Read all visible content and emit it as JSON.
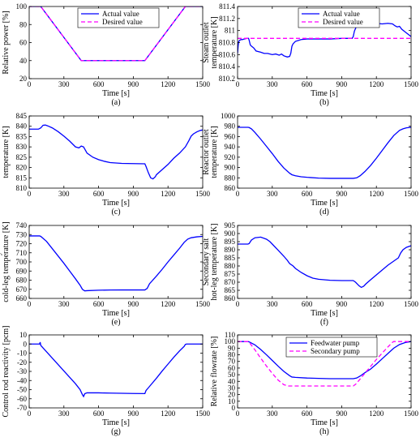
{
  "colors": {
    "blue": "#0000ff",
    "magenta": "#ff00ff",
    "axis": "#000000"
  },
  "chart_data": [
    {
      "id": "a",
      "type": "line",
      "caption": "(a)",
      "xlabel": "Time [s]",
      "ylabel": "Relative power [%]",
      "xlim": [
        0,
        1500
      ],
      "ylim": [
        20,
        100
      ],
      "xticks": [
        0,
        300,
        600,
        900,
        1200,
        1500
      ],
      "yticks": [
        20,
        40,
        60,
        80,
        100
      ],
      "grid": false,
      "legend": "top-center",
      "series": [
        {
          "name": "Actual value",
          "style": "solid",
          "color": "#0000ff",
          "x": [
            0,
            100,
            450,
            1000,
            1350,
            1500
          ],
          "y": [
            100,
            100,
            40,
            40,
            100,
            100
          ]
        },
        {
          "name": "Desired value",
          "style": "dashed",
          "color": "#ff00ff",
          "x": [
            0,
            100,
            450,
            1000,
            1350,
            1500
          ],
          "y": [
            100,
            100,
            40,
            40,
            100,
            100
          ]
        }
      ]
    },
    {
      "id": "b",
      "type": "line",
      "caption": "(b)",
      "xlabel": "Time [s]",
      "ylabel": "Steam outlet temperature [K]",
      "xlim": [
        0,
        1500
      ],
      "ylim": [
        810.2,
        811.4
      ],
      "xticks": [
        0,
        300,
        600,
        900,
        1200,
        1500
      ],
      "yticks": [
        810.2,
        810.4,
        810.6,
        810.8,
        811,
        811.2,
        811.4
      ],
      "grid": false,
      "legend": "top-center",
      "series": [
        {
          "name": "Actual value",
          "style": "solid",
          "color": "#0000ff",
          "x": [
            0,
            5,
            10,
            20,
            30,
            40,
            60,
            80,
            95,
            100,
            110,
            120,
            140,
            160,
            200,
            230,
            260,
            300,
            330,
            360,
            380,
            400,
            430,
            450,
            460,
            470,
            480,
            500,
            550,
            600,
            700,
            800,
            900,
            990,
            1000,
            1010,
            1030,
            1050,
            1070,
            1100,
            1150,
            1200,
            1250,
            1300,
            1340,
            1360,
            1380,
            1400,
            1420,
            1440,
            1460,
            1480,
            1500
          ],
          "y": [
            810.62,
            810.74,
            810.82,
            810.84,
            810.85,
            810.85,
            810.86,
            810.87,
            810.87,
            810.84,
            810.76,
            810.74,
            810.71,
            810.66,
            810.64,
            810.62,
            810.62,
            810.6,
            810.61,
            810.59,
            810.61,
            810.58,
            810.56,
            810.57,
            810.62,
            810.74,
            810.78,
            810.82,
            810.85,
            810.86,
            810.86,
            810.86,
            810.87,
            810.87,
            810.9,
            810.99,
            811.08,
            811.1,
            811.06,
            811.08,
            811.1,
            811.12,
            811.11,
            811.12,
            811.11,
            811.08,
            811.06,
            811.07,
            811.02,
            810.99,
            810.96,
            810.93,
            810.9
          ]
        },
        {
          "name": "Desired value",
          "style": "dashed",
          "color": "#ff00ff",
          "x": [
            0,
            1500
          ],
          "y": [
            810.87,
            810.87
          ]
        }
      ]
    },
    {
      "id": "c",
      "type": "line",
      "caption": "(c)",
      "xlabel": "Time [s]",
      "ylabel": "Reactor inlet temperature [K]",
      "xlim": [
        0,
        1500
      ],
      "ylim": [
        810,
        845
      ],
      "xticks": [
        0,
        300,
        600,
        900,
        1200,
        1500
      ],
      "yticks": [
        810,
        815,
        820,
        825,
        830,
        835,
        840,
        845
      ],
      "grid": false,
      "series": [
        {
          "name": "",
          "style": "solid",
          "color": "#0000ff",
          "x": [
            0,
            80,
            100,
            120,
            140,
            160,
            200,
            250,
            300,
            350,
            400,
            430,
            450,
            470,
            480,
            500,
            550,
            600,
            650,
            700,
            800,
            900,
            1000,
            1010,
            1030,
            1050,
            1070,
            1090,
            1100,
            1130,
            1200,
            1250,
            1300,
            1350,
            1380,
            1400,
            1420,
            1450,
            1480,
            1500
          ],
          "y": [
            838.6,
            838.6,
            839.2,
            840.5,
            840.6,
            840.2,
            839.2,
            837.4,
            835.2,
            832.8,
            830,
            829.5,
            830.4,
            830,
            829,
            827,
            825,
            823.8,
            823,
            822.4,
            822,
            821.9,
            821.8,
            820.5,
            817.5,
            815,
            814.5,
            815.5,
            816.5,
            818,
            821.5,
            824.5,
            827,
            830,
            833,
            835.2,
            836.3,
            837.3,
            838,
            838.2
          ]
        }
      ]
    },
    {
      "id": "d",
      "type": "line",
      "caption": "(d)",
      "xlabel": "Time [s]",
      "ylabel": "Reactor outlet temperature [K]",
      "xlim": [
        0,
        1500
      ],
      "ylim": [
        860,
        1000
      ],
      "xticks": [
        0,
        300,
        600,
        900,
        1200,
        1500
      ],
      "yticks": [
        860,
        880,
        900,
        920,
        940,
        960,
        980,
        1000
      ],
      "grid": false,
      "series": [
        {
          "name": "",
          "style": "solid",
          "color": "#0000ff",
          "x": [
            0,
            90,
            100,
            120,
            150,
            200,
            250,
            300,
            350,
            400,
            450,
            470,
            500,
            550,
            600,
            700,
            800,
            900,
            1000,
            1030,
            1060,
            1100,
            1150,
            1200,
            1250,
            1300,
            1350,
            1400,
            1430,
            1460,
            1500
          ],
          "y": [
            978,
            978,
            977.5,
            975,
            968,
            955,
            941,
            927,
            912,
            899,
            889,
            886,
            884,
            882,
            881,
            879.5,
            879,
            879,
            879,
            880,
            884,
            892,
            904,
            918,
            933,
            948,
            962,
            972,
            975,
            977,
            978
          ]
        }
      ]
    },
    {
      "id": "e",
      "type": "line",
      "caption": "(e)",
      "xlabel": "Time [s]",
      "ylabel": "Secondary salt cold-leg temperature [K]",
      "xlim": [
        0,
        1500
      ],
      "ylim": [
        660,
        740
      ],
      "xticks": [
        0,
        300,
        600,
        900,
        1200,
        1500
      ],
      "yticks": [
        660,
        670,
        680,
        690,
        700,
        710,
        720,
        730,
        740
      ],
      "grid": false,
      "series": [
        {
          "name": "",
          "style": "solid",
          "color": "#0000ff",
          "x": [
            0,
            90,
            100,
            150,
            200,
            250,
            300,
            350,
            400,
            440,
            460,
            480,
            500,
            600,
            700,
            800,
            900,
            1000,
            1020,
            1040,
            1100,
            1150,
            1200,
            1250,
            1300,
            1340,
            1370,
            1400,
            1450,
            1500
          ],
          "y": [
            728.5,
            728.5,
            728,
            722.5,
            714.5,
            706.5,
            698.5,
            690,
            681.5,
            674.5,
            670,
            668.3,
            668.5,
            669,
            669.2,
            669.3,
            669.3,
            669.3,
            671,
            676,
            684.5,
            692,
            700,
            707.5,
            715,
            721.5,
            725,
            726.5,
            727.5,
            728
          ]
        }
      ]
    },
    {
      "id": "f",
      "type": "line",
      "caption": "(f)",
      "xlabel": "Time [s]",
      "ylabel": "Secondary salt hot-leg temperature [K]",
      "xlim": [
        0,
        1500
      ],
      "ylim": [
        860,
        905
      ],
      "xticks": [
        0,
        300,
        600,
        900,
        1200,
        1500
      ],
      "yticks": [
        860,
        865,
        870,
        875,
        880,
        885,
        890,
        895,
        900,
        905
      ],
      "grid": false,
      "series": [
        {
          "name": "",
          "style": "solid",
          "color": "#0000ff",
          "x": [
            0,
            90,
            100,
            120,
            150,
            200,
            250,
            280,
            300,
            350,
            400,
            430,
            450,
            480,
            500,
            550,
            600,
            650,
            700,
            800,
            900,
            1000,
            1020,
            1050,
            1070,
            1090,
            1110,
            1150,
            1200,
            1250,
            1300,
            1350,
            1390,
            1410,
            1430,
            1460,
            1500
          ],
          "y": [
            893.5,
            893.5,
            893.8,
            896,
            897.4,
            897.8,
            896.5,
            895,
            893.5,
            889.8,
            886,
            883.5,
            881.5,
            880,
            878.5,
            876,
            874,
            872.5,
            871.8,
            871.2,
            871,
            871,
            870,
            867.8,
            866.8,
            867.5,
            869,
            871.5,
            874.5,
            877.5,
            880.5,
            883,
            885,
            888,
            890,
            891.5,
            892.5
          ]
        }
      ]
    },
    {
      "id": "g",
      "type": "line",
      "caption": "(g)",
      "xlabel": "Time [s]",
      "ylabel": "Control rod reactivity [pcm]",
      "xlim": [
        0,
        1500
      ],
      "ylim": [
        -70,
        10
      ],
      "xticks": [
        0,
        300,
        600,
        900,
        1200,
        1500
      ],
      "yticks": [
        -70,
        -60,
        -50,
        -40,
        -30,
        -20,
        -10,
        0,
        10
      ],
      "grid": false,
      "series": [
        {
          "name": "",
          "style": "solid",
          "color": "#0000ff",
          "x": [
            0,
            90,
            95,
            100,
            150,
            200,
            250,
            300,
            350,
            400,
            440,
            460,
            470,
            480,
            500,
            600,
            700,
            800,
            900,
            1000,
            1010,
            1030,
            1050,
            1100,
            1150,
            1200,
            1250,
            1300,
            1340,
            1350,
            1360,
            1400,
            1500
          ],
          "y": [
            0,
            0,
            2,
            -1.5,
            -8.5,
            -15.5,
            -22.5,
            -29.5,
            -36.5,
            -43.5,
            -50,
            -55.5,
            -57.5,
            -54.5,
            -53.5,
            -53.5,
            -53.8,
            -54,
            -54.2,
            -54.3,
            -51,
            -48,
            -45,
            -37.5,
            -29.5,
            -22,
            -14.5,
            -7.5,
            -2.5,
            -0.5,
            0,
            0,
            0
          ]
        }
      ]
    },
    {
      "id": "h",
      "type": "line",
      "caption": "(h)",
      "xlabel": "Time [s]",
      "ylabel": "Relative flowrate [%]",
      "xlim": [
        0,
        1500
      ],
      "ylim": [
        0,
        110
      ],
      "xticks": [
        0,
        300,
        600,
        900,
        1200,
        1500
      ],
      "yticks": [
        0,
        10,
        20,
        30,
        40,
        50,
        60,
        70,
        80,
        90,
        100,
        110
      ],
      "grid": false,
      "legend": "top-center",
      "series": [
        {
          "name": "Feedwater pump",
          "style": "solid",
          "color": "#0000ff",
          "x": [
            0,
            90,
            100,
            150,
            200,
            250,
            300,
            350,
            400,
            450,
            470,
            500,
            600,
            700,
            800,
            900,
            1000,
            1030,
            1060,
            1100,
            1150,
            1200,
            1250,
            1300,
            1350,
            1400,
            1450,
            1500
          ],
          "y": [
            100,
            100,
            99.5,
            95,
            88,
            80,
            71.5,
            63,
            55,
            48.5,
            46.5,
            46,
            45,
            44.5,
            44,
            44,
            44,
            45,
            48,
            53,
            58.5,
            66,
            74,
            82,
            90,
            95.5,
            98.5,
            100
          ]
        },
        {
          "name": "Secondary pump",
          "style": "dashed",
          "color": "#ff00ff",
          "x": [
            0,
            90,
            100,
            150,
            200,
            250,
            300,
            350,
            400,
            440,
            450,
            500,
            600,
            700,
            800,
            900,
            1000,
            1020,
            1050,
            1100,
            1150,
            1200,
            1250,
            1300,
            1340,
            1350,
            1380,
            1400,
            1500
          ],
          "y": [
            100,
            100,
            99,
            87.5,
            75,
            63,
            52,
            42,
            35,
            33,
            33,
            33,
            33,
            33,
            33,
            33,
            33,
            35.5,
            41.5,
            52,
            62.5,
            73,
            82.5,
            92,
            99,
            100,
            100,
            100,
            100
          ]
        }
      ]
    }
  ]
}
